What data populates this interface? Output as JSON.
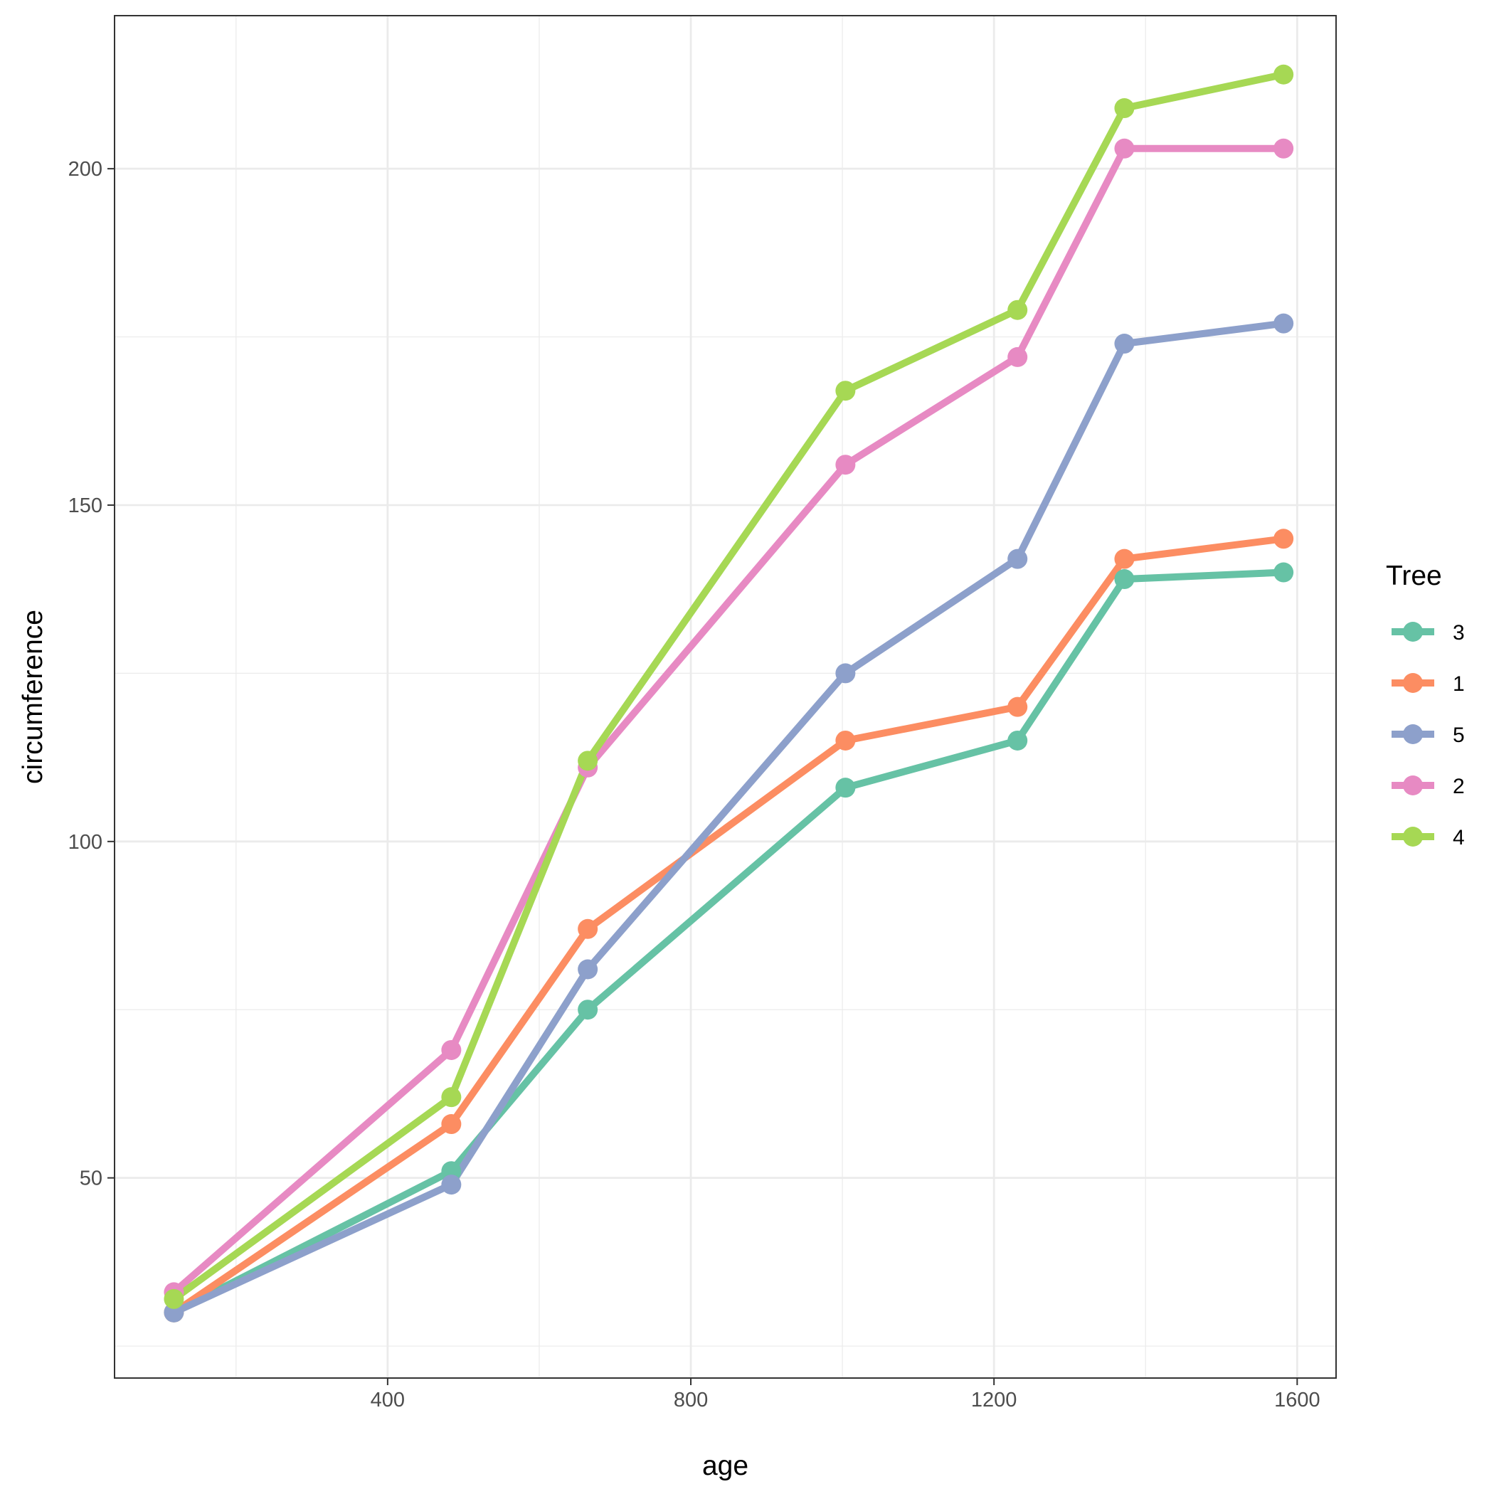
{
  "chart_data": {
    "type": "line",
    "title": "",
    "xlabel": "age",
    "ylabel": "circumference",
    "xlim": [
      39.7,
      1651.3
    ],
    "ylim": [
      20.25,
      222.75
    ],
    "x_ticks": [
      400,
      800,
      1200,
      1600
    ],
    "x_tick_labels": [
      "400",
      "800",
      "1200",
      "1600"
    ],
    "y_ticks": [
      50,
      100,
      150,
      200
    ],
    "y_tick_labels": [
      "50",
      "100",
      "150",
      "200"
    ],
    "x_minor_grid": [
      200,
      600,
      1000,
      1400
    ],
    "y_minor_grid": [
      25,
      75,
      125,
      175
    ],
    "grid": true,
    "legend": {
      "title": "Tree",
      "position": "right"
    },
    "x": [
      118,
      484,
      664,
      1004,
      1231,
      1372,
      1582
    ],
    "series": [
      {
        "name": "3",
        "color": "#66C2A5",
        "values": [
          30,
          51,
          75,
          108,
          115,
          139,
          140
        ]
      },
      {
        "name": "1",
        "color": "#FC8D62",
        "values": [
          30,
          58,
          87,
          115,
          120,
          142,
          145
        ]
      },
      {
        "name": "5",
        "color": "#8DA0CB",
        "values": [
          30,
          49,
          81,
          125,
          142,
          174,
          177
        ]
      },
      {
        "name": "2",
        "color": "#E78AC3",
        "values": [
          33,
          69,
          111,
          156,
          172,
          203,
          203
        ]
      },
      {
        "name": "4",
        "color": "#A6D854",
        "values": [
          32,
          62,
          112,
          167,
          179,
          209,
          214
        ]
      }
    ]
  }
}
